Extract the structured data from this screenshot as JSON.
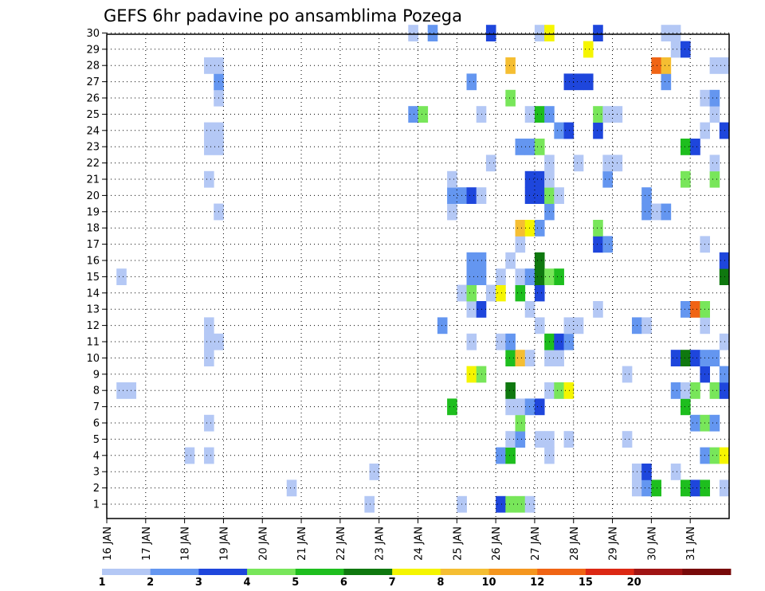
{
  "chart_data": {
    "type": "heatmap",
    "title": "GEFS 6hr padavine po ansamblima Pozega",
    "xlabel": "",
    "ylabel": "",
    "x_tick_labels": [
      "16 JAN",
      "17 JAN",
      "18 JAN",
      "19 JAN",
      "20 JAN",
      "21 JAN",
      "22 JAN",
      "23 JAN",
      "24 JAN",
      "25 JAN",
      "26 JAN",
      "27 JAN",
      "28 JAN",
      "29 JAN",
      "30 JAN",
      "31 JAN"
    ],
    "y_tick_labels": [
      "1",
      "2",
      "3",
      "4",
      "5",
      "6",
      "7",
      "8",
      "9",
      "10",
      "11",
      "12",
      "13",
      "14",
      "15",
      "16",
      "17",
      "18",
      "19",
      "20",
      "21",
      "22",
      "23",
      "24",
      "25",
      "26",
      "27",
      "28",
      "29",
      "30"
    ],
    "grid": true,
    "x_step": "6h",
    "legend": {
      "placement": "bottom",
      "bins": [
        {
          "label": "1",
          "color": "#b4c8f5"
        },
        {
          "label": "2",
          "color": "#6496f0"
        },
        {
          "label": "3",
          "color": "#1e46dc"
        },
        {
          "label": "4",
          "color": "#78e65a"
        },
        {
          "label": "5",
          "color": "#1ebe1e"
        },
        {
          "label": "6",
          "color": "#0f780f"
        },
        {
          "label": "7",
          "color": "#f5f500"
        },
        {
          "label": "8",
          "color": "#f5be32"
        },
        {
          "label": "10",
          "color": "#f5961e"
        },
        {
          "label": "12",
          "color": "#f06414"
        },
        {
          "label": "15",
          "color": "#dc2814"
        },
        {
          "label": "20",
          "color": "#a01414"
        },
        {
          "label": "",
          "color": "#780a0a"
        }
      ]
    },
    "series": [
      {
        "member": 1,
        "cells": [
          [
            26.5,
            1
          ],
          [
            36,
            1
          ],
          [
            40,
            3
          ],
          [
            41,
            4
          ],
          [
            42,
            4
          ],
          [
            43,
            1
          ]
        ]
      },
      {
        "member": 2,
        "cells": [
          [
            18.5,
            1
          ],
          [
            54,
            1
          ],
          [
            55,
            2
          ],
          [
            56,
            5
          ],
          [
            59,
            5
          ],
          [
            60,
            3
          ],
          [
            61,
            5
          ],
          [
            63,
            1
          ]
        ]
      },
      {
        "member": 3,
        "cells": [
          [
            27,
            1
          ],
          [
            54,
            1
          ],
          [
            55,
            3
          ],
          [
            58,
            1
          ]
        ]
      },
      {
        "member": 4,
        "cells": [
          [
            8,
            1
          ],
          [
            10,
            1
          ],
          [
            40,
            2
          ],
          [
            41,
            5
          ],
          [
            45,
            1
          ],
          [
            61,
            2
          ],
          [
            62,
            4
          ],
          [
            63,
            7
          ]
        ]
      },
      {
        "member": 5,
        "cells": [
          [
            41,
            1
          ],
          [
            42,
            2
          ],
          [
            44,
            1
          ],
          [
            45,
            1
          ],
          [
            47,
            1
          ],
          [
            53,
            1
          ]
        ]
      },
      {
        "member": 6,
        "cells": [
          [
            10,
            1
          ],
          [
            42,
            4
          ],
          [
            60,
            2
          ],
          [
            61,
            4
          ],
          [
            62,
            2
          ]
        ]
      },
      {
        "member": 7,
        "cells": [
          [
            35,
            5
          ],
          [
            41,
            1
          ],
          [
            42,
            1
          ],
          [
            43,
            2
          ],
          [
            44,
            3
          ],
          [
            59,
            5
          ]
        ]
      },
      {
        "member": 8,
        "cells": [
          [
            1,
            1
          ],
          [
            2,
            1
          ],
          [
            41,
            6
          ],
          [
            45,
            1
          ],
          [
            46,
            4
          ],
          [
            47,
            7
          ],
          [
            58,
            2
          ],
          [
            59,
            1
          ],
          [
            60,
            4
          ],
          [
            62,
            4
          ],
          [
            63,
            3
          ]
        ]
      },
      {
        "member": 9,
        "cells": [
          [
            37,
            7
          ],
          [
            38,
            4
          ],
          [
            53,
            1
          ],
          [
            61,
            3
          ],
          [
            63,
            2
          ]
        ]
      },
      {
        "member": 10,
        "cells": [
          [
            10,
            1
          ],
          [
            41,
            5
          ],
          [
            42,
            8
          ],
          [
            43,
            1
          ],
          [
            45,
            1
          ],
          [
            46,
            1
          ],
          [
            58,
            3
          ],
          [
            59,
            6
          ],
          [
            60,
            3
          ],
          [
            61,
            2
          ],
          [
            62,
            2
          ]
        ]
      },
      {
        "member": 11,
        "cells": [
          [
            10,
            1
          ],
          [
            11,
            1
          ],
          [
            37,
            1
          ],
          [
            40,
            1
          ],
          [
            41,
            2
          ],
          [
            45,
            5
          ],
          [
            46,
            3
          ],
          [
            47,
            2
          ],
          [
            63,
            1
          ]
        ]
      },
      {
        "member": 12,
        "cells": [
          [
            10,
            1
          ],
          [
            34,
            2
          ],
          [
            44,
            1
          ],
          [
            47,
            1
          ],
          [
            48,
            1
          ],
          [
            54,
            2
          ],
          [
            55,
            1
          ],
          [
            61,
            1
          ]
        ]
      },
      {
        "member": 13,
        "cells": [
          [
            37,
            1
          ],
          [
            38,
            3
          ],
          [
            43,
            1
          ],
          [
            50,
            1
          ],
          [
            59,
            2
          ],
          [
            60,
            10
          ],
          [
            61,
            4
          ]
        ]
      },
      {
        "member": 14,
        "cells": [
          [
            36,
            1
          ],
          [
            37,
            4
          ],
          [
            39,
            1
          ],
          [
            40,
            7
          ],
          [
            42,
            5
          ],
          [
            44,
            3
          ]
        ]
      },
      {
        "member": 15,
        "cells": [
          [
            1,
            1
          ],
          [
            37,
            2
          ],
          [
            38,
            2
          ],
          [
            40,
            1
          ],
          [
            42,
            1
          ],
          [
            43,
            2
          ],
          [
            44,
            6
          ],
          [
            45,
            4
          ],
          [
            46,
            5
          ],
          [
            63,
            6
          ]
        ]
      },
      {
        "member": 16,
        "cells": [
          [
            37,
            2
          ],
          [
            38,
            2
          ],
          [
            41,
            1
          ],
          [
            44,
            6
          ],
          [
            63,
            3
          ]
        ]
      },
      {
        "member": 17,
        "cells": [
          [
            42,
            1
          ],
          [
            50,
            3
          ],
          [
            51,
            2
          ],
          [
            61,
            1
          ]
        ]
      },
      {
        "member": 18,
        "cells": [
          [
            42,
            8
          ],
          [
            43,
            7
          ],
          [
            44,
            2
          ],
          [
            50,
            4
          ]
        ]
      },
      {
        "member": 19,
        "cells": [
          [
            11,
            1
          ],
          [
            35,
            1
          ],
          [
            45,
            2
          ],
          [
            55,
            2
          ],
          [
            56,
            1
          ],
          [
            57,
            2
          ]
        ]
      },
      {
        "member": 20,
        "cells": [
          [
            35,
            2
          ],
          [
            36,
            2
          ],
          [
            37,
            3
          ],
          [
            38,
            1
          ],
          [
            43,
            3
          ],
          [
            44,
            3
          ],
          [
            45,
            4
          ],
          [
            46,
            1
          ],
          [
            55,
            2
          ]
        ]
      },
      {
        "member": 21,
        "cells": [
          [
            10,
            1
          ],
          [
            35,
            1
          ],
          [
            43,
            3
          ],
          [
            44,
            3
          ],
          [
            45,
            1
          ],
          [
            51,
            2
          ],
          [
            59,
            4
          ],
          [
            62,
            4
          ]
        ]
      },
      {
        "member": 22,
        "cells": [
          [
            39,
            1
          ],
          [
            45,
            1
          ],
          [
            48,
            1
          ],
          [
            51,
            1
          ],
          [
            52,
            1
          ],
          [
            62,
            1
          ]
        ]
      },
      {
        "member": 23,
        "cells": [
          [
            10,
            1
          ],
          [
            11,
            1
          ],
          [
            42,
            2
          ],
          [
            43,
            2
          ],
          [
            44,
            4
          ],
          [
            59,
            5
          ],
          [
            60,
            3
          ]
        ]
      },
      {
        "member": 24,
        "cells": [
          [
            10,
            1
          ],
          [
            11,
            1
          ],
          [
            46,
            2
          ],
          [
            47,
            3
          ],
          [
            50,
            3
          ],
          [
            61,
            1
          ],
          [
            63,
            3
          ]
        ]
      },
      {
        "member": 25,
        "cells": [
          [
            31,
            2
          ],
          [
            32,
            4
          ],
          [
            38,
            1
          ],
          [
            43,
            1
          ],
          [
            44,
            5
          ],
          [
            45,
            2
          ],
          [
            50,
            4
          ],
          [
            51,
            1
          ],
          [
            52,
            1
          ],
          [
            62,
            1
          ]
        ]
      },
      {
        "member": 26,
        "cells": [
          [
            11,
            1
          ],
          [
            41,
            4
          ],
          [
            61,
            1
          ],
          [
            62,
            2
          ]
        ]
      },
      {
        "member": 27,
        "cells": [
          [
            11,
            2
          ],
          [
            37,
            2
          ],
          [
            47,
            3
          ],
          [
            48,
            3
          ],
          [
            49,
            3
          ],
          [
            57,
            2
          ]
        ]
      },
      {
        "member": 28,
        "cells": [
          [
            10,
            1
          ],
          [
            11,
            1
          ],
          [
            41,
            8
          ],
          [
            56,
            10
          ],
          [
            57,
            8
          ],
          [
            62,
            1
          ],
          [
            63,
            1
          ]
        ]
      },
      {
        "member": 29,
        "cells": [
          [
            49,
            7
          ],
          [
            58,
            1
          ],
          [
            59,
            3
          ]
        ]
      },
      {
        "member": 30,
        "cells": [
          [
            31,
            1
          ],
          [
            33,
            2
          ],
          [
            39,
            3
          ],
          [
            44,
            1
          ],
          [
            45,
            7
          ],
          [
            50,
            3
          ],
          [
            57,
            1
          ],
          [
            58,
            1
          ]
        ]
      }
    ]
  }
}
